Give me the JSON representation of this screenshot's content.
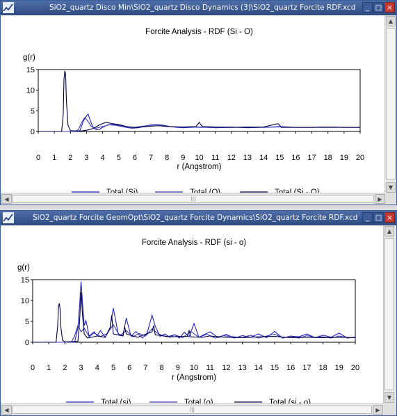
{
  "windows": [
    {
      "title": "SiO2_quartz Disco Min\\SiO2_quartz Disco Dynamics (3)\\SiO2_quartz Forcite RDF.xcd",
      "controls": {
        "minimize": "_",
        "maximize": "□",
        "close": "×"
      }
    },
    {
      "title": "SiO2_quartz Forcite GeomOpt\\SiO2_quartz Forcite Dynamics\\SiO2_quartz Forcite RDF.xcd",
      "controls": {
        "minimize": "_",
        "maximize": "□",
        "close": "×"
      }
    }
  ],
  "colors": {
    "total_si": "#2020c0",
    "total_o": "#3a3ab0",
    "total_sio": "#000044"
  },
  "chart_data": [
    {
      "type": "line",
      "title": "Forcite Analysis - RDF (Si - O)",
      "xlabel": "r (Angstrom)",
      "ylabel": "g(r)",
      "xlim": [
        0,
        20
      ],
      "ylim": [
        0,
        15
      ],
      "xticks": [
        "0",
        "1",
        "2",
        "3",
        "4",
        "5",
        "6",
        "7",
        "8",
        "9",
        "10",
        "11",
        "12",
        "13",
        "14",
        "15",
        "16",
        "17",
        "18",
        "19",
        "20"
      ],
      "yticks": [
        "0",
        "5",
        "10",
        "15"
      ],
      "legend_position": "bottom",
      "series": [
        {
          "name": "Total (Si)",
          "color": "#2020c0",
          "x": [
            0,
            2.4,
            2.6,
            2.8,
            3.0,
            3.1,
            3.2,
            3.4,
            3.6,
            3.8,
            4.0,
            4.3,
            4.6,
            5.0,
            5.4,
            5.8,
            6.2,
            6.6,
            7.0,
            7.4,
            7.8,
            8.2,
            8.6,
            9.0,
            9.5,
            10,
            10.5,
            11,
            12,
            13,
            14,
            15,
            16,
            17,
            18,
            19,
            20
          ],
          "y": [
            0,
            0,
            0.3,
            2.5,
            3.8,
            4.2,
            3.0,
            1.0,
            0.4,
            0.5,
            1.0,
            1.6,
            1.7,
            1.5,
            1.1,
            0.8,
            0.9,
            1.2,
            1.6,
            1.7,
            1.5,
            1.2,
            1.0,
            0.9,
            1.0,
            1.1,
            1.0,
            0.9,
            1.0,
            1.1,
            1.0,
            1.2,
            1.0,
            1.0,
            1.1,
            1.0,
            1.0
          ]
        },
        {
          "name": "Total (O)",
          "color": "#3a3ab0",
          "x": [
            0,
            2.3,
            2.5,
            2.7,
            2.9,
            3.1,
            3.3,
            3.6,
            4.0,
            4.4,
            4.8,
            5.2,
            5.6,
            6.0,
            6.5,
            7.0,
            7.4,
            7.8,
            8.2,
            8.8,
            9.5,
            10,
            11,
            12,
            13,
            14,
            15,
            16,
            17,
            18,
            19,
            20
          ],
          "y": [
            0,
            0,
            0.5,
            2.2,
            3.4,
            2.4,
            1.2,
            0.8,
            1.2,
            1.6,
            1.5,
            1.2,
            0.9,
            1.0,
            1.3,
            1.5,
            1.7,
            1.4,
            1.2,
            1.0,
            1.1,
            1.0,
            1.0,
            1.1,
            0.9,
            1.0,
            1.1,
            1.0,
            1.0,
            1.1,
            1.0,
            1.0
          ]
        },
        {
          "name": "Total (Si - O)",
          "color": "#000044",
          "x": [
            0,
            1.45,
            1.55,
            1.6,
            1.65,
            1.7,
            1.75,
            1.85,
            2.0,
            2.6,
            3.0,
            3.4,
            3.8,
            4.2,
            4.6,
            5.0,
            5.5,
            6.0,
            6.5,
            7.0,
            7.5,
            8.0,
            9.0,
            9.8,
            10.0,
            10.2,
            11,
            12,
            13,
            14,
            14.9,
            15.0,
            15.1,
            16,
            17,
            18,
            19,
            20
          ],
          "y": [
            0,
            0,
            4.0,
            12.5,
            14.7,
            13.8,
            7.5,
            1.5,
            0.2,
            0.1,
            0.3,
            0.7,
            1.6,
            2.2,
            1.9,
            1.7,
            1.2,
            1.0,
            1.1,
            1.3,
            1.4,
            1.2,
            1.1,
            1.2,
            2.2,
            1.2,
            1.1,
            1.0,
            1.0,
            1.1,
            1.9,
            1.5,
            1.0,
            1.0,
            1.0,
            1.0,
            1.0,
            1.0
          ]
        }
      ]
    },
    {
      "type": "line",
      "title": "Forcite Analysis - RDF (si - o)",
      "xlabel": "r (Angstrom)",
      "ylabel": "g(r)",
      "xlim": [
        0,
        20
      ],
      "ylim": [
        0,
        15
      ],
      "xticks": [
        "0",
        "1",
        "2",
        "3",
        "4",
        "5",
        "6",
        "7",
        "8",
        "9",
        "10",
        "11",
        "12",
        "13",
        "14",
        "15",
        "16",
        "17",
        "18",
        "19",
        "20"
      ],
      "yticks": [
        "0",
        "5",
        "10",
        "15"
      ],
      "legend_position": "bottom",
      "series": [
        {
          "name": "Total (si)",
          "color": "#2020c0",
          "x": [
            0,
            2.6,
            2.8,
            2.9,
            3.0,
            3.1,
            3.2,
            3.3,
            3.5,
            3.8,
            4.0,
            4.2,
            4.5,
            4.8,
            5.0,
            5.3,
            5.6,
            5.8,
            6.1,
            6.4,
            6.8,
            7.1,
            7.4,
            7.6,
            7.9,
            8.2,
            8.5,
            8.8,
            9.1,
            9.4,
            9.7,
            10.0,
            10.3,
            10.6,
            11,
            11.5,
            12,
            12.5,
            13,
            13.5,
            14,
            14.5,
            15,
            15.5,
            16,
            16.5,
            17,
            17.5,
            18,
            18.5,
            19,
            19.5,
            20
          ],
          "y": [
            0,
            0,
            3.5,
            8.5,
            14.5,
            9.0,
            4.0,
            5.2,
            1.5,
            2.5,
            1.6,
            2.8,
            1.2,
            3.5,
            8.2,
            2.0,
            1.6,
            5.8,
            1.4,
            2.6,
            1.0,
            2.2,
            6.5,
            3.8,
            1.4,
            2.0,
            1.2,
            1.8,
            1.0,
            2.4,
            1.3,
            4.5,
            1.2,
            1.8,
            2.5,
            1.1,
            1.9,
            1.0,
            1.6,
            1.2,
            2.0,
            1.1,
            2.6,
            1.0,
            1.5,
            1.3,
            2.0,
            1.1,
            1.7,
            1.2,
            2.2,
            1.0,
            1.2
          ]
        },
        {
          "name": "Total (o)",
          "color": "#3a3ab0",
          "x": [
            0,
            2.4,
            2.6,
            2.8,
            3.0,
            3.2,
            3.5,
            3.8,
            4.2,
            4.6,
            5.0,
            5.4,
            5.8,
            6.2,
            6.6,
            7.0,
            7.4,
            7.8,
            8.3,
            8.8,
            9.3,
            9.8,
            10.3,
            10.8,
            11.3,
            11.8,
            12.5,
            13,
            13.5,
            14,
            14.5,
            15,
            15.5,
            16,
            16.5,
            17,
            17.5,
            18,
            18.5,
            19,
            19.5,
            20
          ],
          "y": [
            0,
            0,
            1.5,
            4.0,
            2.5,
            3.4,
            1.3,
            2.2,
            1.4,
            2.0,
            4.2,
            1.6,
            2.8,
            1.3,
            2.1,
            1.5,
            3.2,
            2.0,
            1.3,
            1.8,
            1.1,
            2.6,
            1.2,
            1.9,
            1.0,
            1.6,
            1.3,
            1.1,
            1.7,
            1.0,
            1.5,
            1.9,
            1.1,
            1.4,
            1.0,
            1.6,
            1.2,
            1.3,
            1.0,
            1.5,
            1.1,
            1.2
          ]
        },
        {
          "name": "Total (si - o)",
          "color": "#000044",
          "x": [
            0,
            1.45,
            1.55,
            1.6,
            1.65,
            1.7,
            1.75,
            1.85,
            2.0,
            2.8,
            2.9,
            3.0,
            3.1,
            3.2,
            3.4,
            4.0,
            4.5,
            4.8,
            4.9,
            5.0,
            5.6,
            5.7,
            5.8,
            6.5,
            7.4,
            7.5,
            7.6,
            8.5,
            9.6,
            9.7,
            9.8,
            10.5,
            11,
            12,
            13,
            14,
            15,
            16,
            17,
            18,
            19,
            20
          ],
          "y": [
            0,
            0,
            4.0,
            8.5,
            9.3,
            8.0,
            3.5,
            0.5,
            0.1,
            0.2,
            4.5,
            12.0,
            6.0,
            2.0,
            1.0,
            1.5,
            1.2,
            3.5,
            6.5,
            2.0,
            1.5,
            3.8,
            2.0,
            1.2,
            2.5,
            4.0,
            1.8,
            1.3,
            1.4,
            2.8,
            1.3,
            1.2,
            1.5,
            1.2,
            1.1,
            1.3,
            1.4,
            1.1,
            1.2,
            1.1,
            1.2,
            1.1
          ]
        }
      ]
    }
  ]
}
